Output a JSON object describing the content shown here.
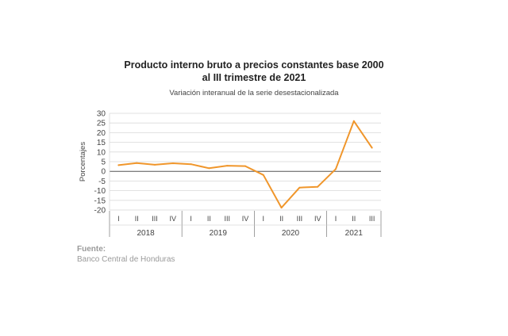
{
  "chart_data": {
    "type": "line",
    "title": "Producto interno bruto a precios constantes base 2000",
    "title_line2": "al III trimestre de 2021",
    "subtitle": "Variación interanual de la serie desestacionalizada",
    "ylabel": "Porcentajes",
    "ylim": [
      -20,
      30
    ],
    "yticks": [
      30,
      25,
      20,
      15,
      10,
      5,
      0,
      -5,
      -10,
      -15,
      -20
    ],
    "grid": true,
    "years": [
      {
        "label": "2018",
        "quarters": [
          "I",
          "II",
          "III",
          "IV"
        ]
      },
      {
        "label": "2019",
        "quarters": [
          "I",
          "II",
          "III",
          "IV"
        ]
      },
      {
        "label": "2020",
        "quarters": [
          "I",
          "II",
          "III",
          "IV"
        ]
      },
      {
        "label": "2021",
        "quarters": [
          "I",
          "II",
          "III"
        ]
      }
    ],
    "series": [
      {
        "color": "#f0962b",
        "values": [
          3.2,
          4.3,
          3.4,
          4.2,
          3.7,
          1.6,
          2.9,
          2.7,
          -1.9,
          -18.8,
          -8.4,
          -8.0,
          1.2,
          26.0,
          12.2
        ]
      }
    ]
  },
  "source": {
    "label": "Fuente:",
    "text": "Banco Central de Honduras"
  }
}
